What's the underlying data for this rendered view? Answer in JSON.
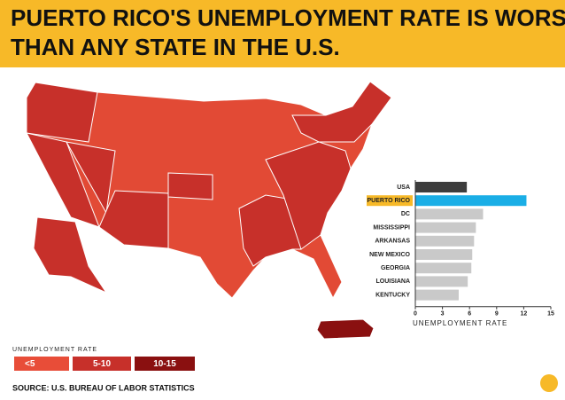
{
  "header": {
    "title": "PUERTO RICO'S UNEMPLOYMENT RATE IS WORSE THAN ANY STATE IN THE U.S."
  },
  "legend": {
    "title": "UNEMPLOYMENT RATE",
    "items": [
      {
        "label": "<5",
        "color": "#e84d38"
      },
      {
        "label": "5-10",
        "color": "#c7302a"
      },
      {
        "label": "10-15",
        "color": "#8a1010"
      }
    ]
  },
  "source": "SOURCE: U.S. BUREAU OF LABOR STATISTICS",
  "chart_data": {
    "type": "bar",
    "orientation": "horizontal",
    "categories": [
      "USA",
      "PUERTO RICO",
      "DC",
      "MISSISSIPPI",
      "ARKANSAS",
      "NEW MEXICO",
      "GEORGIA",
      "LOUISIANA",
      "KENTUCKY"
    ],
    "values": [
      5.7,
      12.3,
      7.5,
      6.7,
      6.5,
      6.3,
      6.2,
      5.8,
      4.8
    ],
    "colors": [
      "#3d3d3d",
      "#1aaee6",
      "#c9c9c9",
      "#c9c9c9",
      "#c9c9c9",
      "#c9c9c9",
      "#c9c9c9",
      "#c9c9c9",
      "#c9c9c9"
    ],
    "label_backgrounds": [
      null,
      "#f7b928",
      null,
      null,
      null,
      null,
      null,
      null,
      null
    ],
    "xlabel": "UNEMPLOYMENT RATE",
    "xlim": [
      0,
      15
    ],
    "xticks": [
      0,
      3,
      6,
      9,
      12,
      15
    ]
  }
}
